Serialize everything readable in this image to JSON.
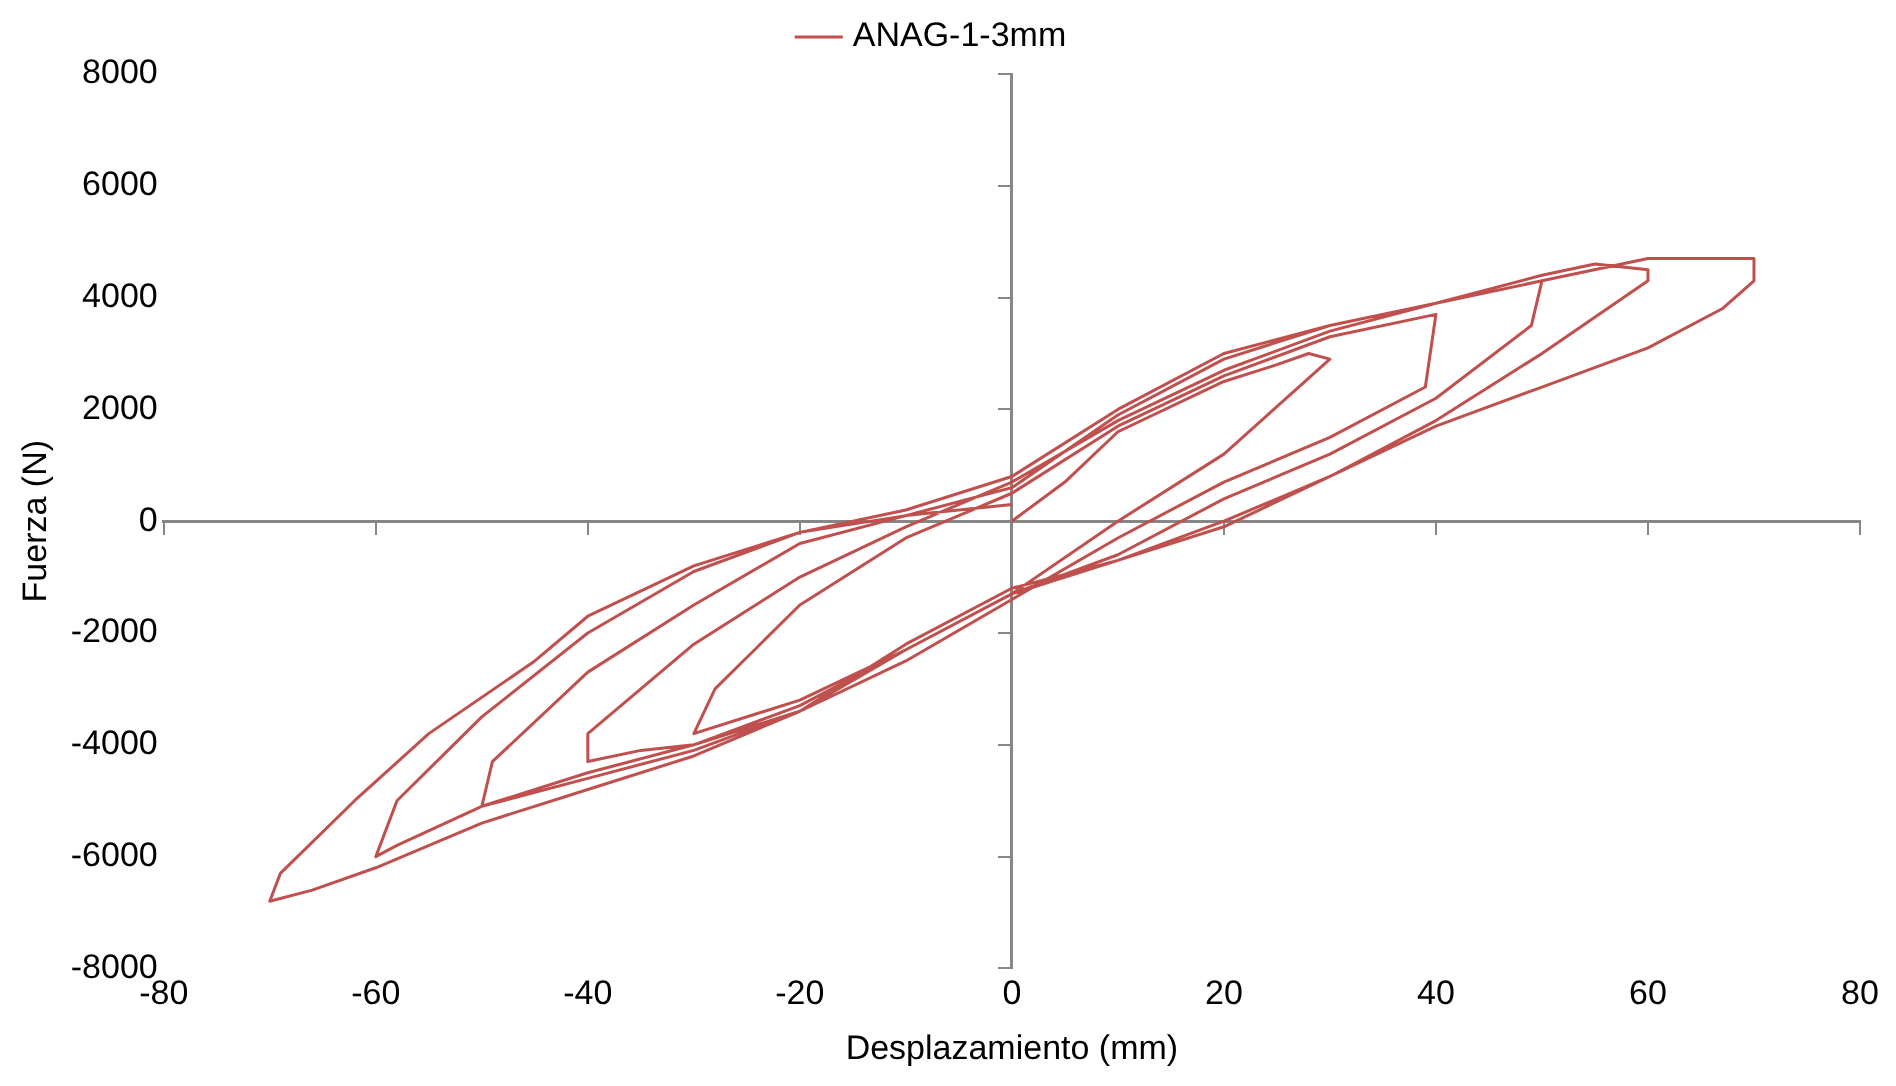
{
  "chart_data": {
    "type": "line",
    "xlabel": "Desplazamiento (mm)",
    "ylabel": "Fuerza (N)",
    "xlim": [
      -80,
      80
    ],
    "xticks": [
      -80,
      -60,
      -40,
      -20,
      0,
      20,
      40,
      60,
      80
    ],
    "ylim": [
      -8000,
      8000
    ],
    "yticks": [
      -8000,
      -6000,
      -4000,
      -2000,
      0,
      2000,
      4000,
      6000,
      8000
    ],
    "legend": "top",
    "marker": "none",
    "line_style": "solid",
    "series": [
      {
        "name": "ANAG-1-3mm",
        "color": "#c0504d",
        "x": [
          0,
          5,
          10,
          20,
          25,
          28,
          30,
          20,
          10,
          0,
          -10,
          -20,
          -30,
          -28,
          -20,
          -10,
          0,
          10,
          20,
          30,
          40,
          39,
          30,
          20,
          10,
          0,
          -10,
          -20,
          -30,
          -35,
          -40,
          -40,
          -30,
          -20,
          -10,
          0,
          10,
          20,
          30,
          40,
          50,
          49,
          40,
          30,
          20,
          10,
          0,
          -10,
          -20,
          -30,
          -40,
          -50,
          -49,
          -40,
          -30,
          -20,
          -10,
          0,
          10,
          20,
          30,
          40,
          50,
          55,
          60,
          60,
          50,
          40,
          30,
          20,
          10,
          0,
          -10,
          -20,
          -30,
          -40,
          -50,
          -58,
          -60,
          -58,
          -50,
          -40,
          -30,
          -20,
          -10,
          0,
          10,
          20,
          30,
          40,
          50,
          60,
          65,
          70,
          70,
          67,
          60,
          50,
          40,
          30,
          20,
          10,
          0,
          -10,
          -20,
          -30,
          -40,
          -50,
          -60,
          -66,
          -70,
          -69,
          -62,
          -55,
          -45,
          -40,
          -30,
          -20,
          -10,
          0
        ],
        "values": [
          0,
          700,
          1600,
          2500,
          2800,
          3000,
          2900,
          1200,
          0,
          -1300,
          -2300,
          -3200,
          -3800,
          -3000,
          -1500,
          -300,
          500,
          1700,
          2600,
          3300,
          3700,
          2400,
          1500,
          700,
          -300,
          -1400,
          -2500,
          -3400,
          -4000,
          -4100,
          -4300,
          -3800,
          -2200,
          -1000,
          -100,
          700,
          1800,
          2700,
          3400,
          3900,
          4300,
          3500,
          2200,
          1200,
          400,
          -600,
          -1300,
          -2300,
          -3300,
          -4000,
          -4500,
          -5100,
          -4300,
          -2700,
          -1500,
          -400,
          100,
          600,
          1900,
          2900,
          3500,
          3900,
          4400,
          4600,
          4500,
          4300,
          3000,
          1800,
          800,
          0,
          -700,
          -1300,
          -2300,
          -3400,
          -4100,
          -4600,
          -5100,
          -5800,
          -6000,
          -5000,
          -3500,
          -2000,
          -900,
          -200,
          200,
          800,
          2000,
          3000,
          3500,
          3900,
          4300,
          4700,
          4700,
          4700,
          4300,
          3800,
          3100,
          2400,
          1700,
          800,
          -100,
          -700,
          -1200,
          -2200,
          -3400,
          -4200,
          -4800,
          -5400,
          -6200,
          -6600,
          -6800,
          -6300,
          -5000,
          -3800,
          -2500,
          -1700,
          -800,
          -200,
          100,
          300
        ]
      }
    ]
  }
}
